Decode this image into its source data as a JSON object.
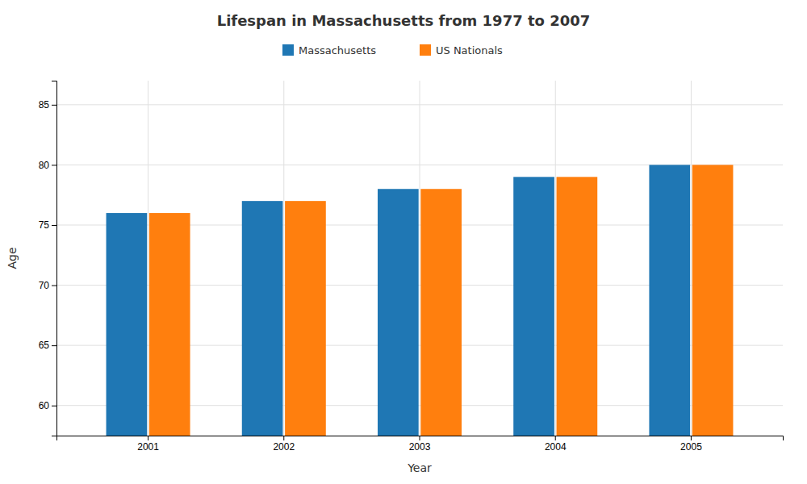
{
  "chart_data": {
    "type": "bar",
    "title": "Lifespan in Massachusetts from 1977 to 2007",
    "xlabel": "Year",
    "ylabel": "Age",
    "categories": [
      2001,
      2002,
      2003,
      2004,
      2005
    ],
    "series": [
      {
        "name": "Massachusetts",
        "values": [
          76,
          77,
          78,
          79,
          80
        ]
      },
      {
        "name": "US Nationals",
        "values": [
          76,
          77,
          78,
          79,
          80
        ]
      }
    ],
    "ylim": [
      57.5,
      87
    ],
    "yticks": [
      60,
      65,
      70,
      75,
      80,
      85
    ],
    "grid": true,
    "legend": "top"
  }
}
